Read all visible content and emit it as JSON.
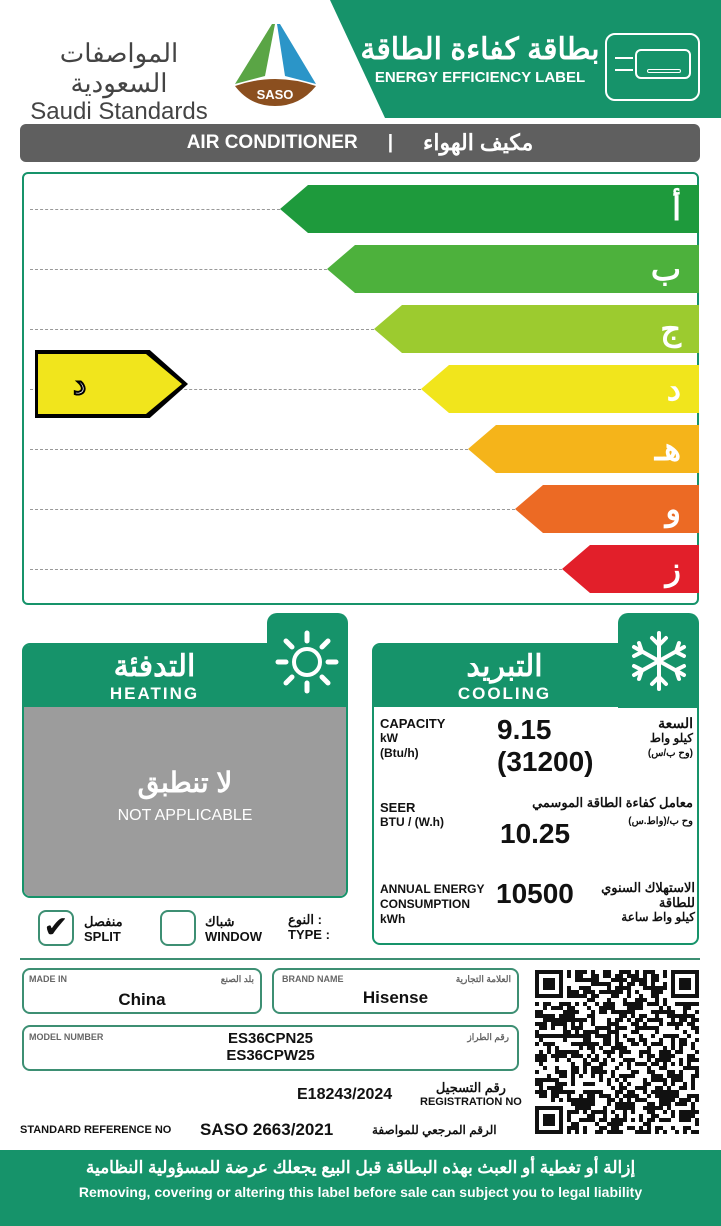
{
  "header": {
    "org_ar": "المواصفات السعودية",
    "org_en": "Saudi Standards",
    "logo_text": "SASO",
    "label_ar": "بطاقة كفاءة الطاقة",
    "label_en": "ENERGY EFFICIENCY LABEL",
    "icon": "air-conditioner-icon"
  },
  "category": {
    "en": "AIR CONDITIONER",
    "sep": "|",
    "ar": "مكيف الهواء"
  },
  "scale": {
    "classes": [
      {
        "letter": "أ",
        "color": "#1e9a3c"
      },
      {
        "letter": "ب",
        "color": "#4db13c"
      },
      {
        "letter": "ج",
        "color": "#9ccb2f"
      },
      {
        "letter": "د",
        "color": "#f1e51c"
      },
      {
        "letter": "هـ",
        "color": "#f5b41a"
      },
      {
        "letter": "و",
        "color": "#ec6a24"
      },
      {
        "letter": "ز",
        "color": "#e21f2a"
      }
    ],
    "rating": "د",
    "rating_index": 3
  },
  "heating": {
    "title_ar": "التدفئة",
    "title_en": "HEATING",
    "icon": "sun-icon",
    "na_ar": "لا تنطبق",
    "na_en": "NOT APPLICABLE"
  },
  "cooling": {
    "title_ar": "التبريد",
    "title_en": "COOLING",
    "icon": "snowflake-icon",
    "capacity": {
      "en1": "CAPACITY",
      "en2": "kW",
      "en3": "(Btu/h)",
      "value1": "9.15",
      "value2": "(31200)",
      "ar1": "السعة",
      "ar2": "كيلو واط",
      "ar3": "(وح ب/س)"
    },
    "seer": {
      "en1": "SEER",
      "en2": "BTU / (W.h)",
      "value": "10.25",
      "ar1": "معامل كفاءة الطاقة الموسمي",
      "ar2": "وح ب/(واط.س)"
    },
    "annual": {
      "en1": "ANNUAL ENERGY",
      "en2": "CONSUMPTION",
      "en3": "kWh",
      "value": "10500",
      "ar1": "الاستهلاك السنوي",
      "ar2": "للطاقة",
      "ar3": "كيلو واط ساعة"
    }
  },
  "type": {
    "split_ar": "منفصل",
    "split_en": "SPLIT",
    "split_checked": true,
    "window_ar": "شباك",
    "window_en": "WINDOW",
    "window_checked": false,
    "label_ar": "النوع :",
    "label_en": "TYPE :",
    "check": "✔"
  },
  "info": {
    "made_in_en": "MADE IN",
    "made_in_ar": "بلد الصنع",
    "made_in": "China",
    "brand_en": "BRAND NAME",
    "brand_ar": "العلامة التجارية",
    "brand": "Hisense",
    "model_en": "MODEL NUMBER",
    "model_ar": "رقم الطراز",
    "model1": "ES36CPN25",
    "model2": "ES36CPW25",
    "reg_value": "E18243/2024",
    "reg_ar": "رقم التسجيل",
    "reg_en": "REGISTRATION NO",
    "std_en": "STANDARD REFERENCE NO",
    "std_value": "SASO 2663/2021",
    "std_ar": "الرقم المرجعي للمواصفة"
  },
  "footer": {
    "ar": "إزالة أو تغطية أو العبث بهذه البطاقة قبل البيع يجعلك عرضة للمسؤولية النظامية",
    "en": "Removing, covering or altering this label before sale can subject you to legal liability"
  }
}
